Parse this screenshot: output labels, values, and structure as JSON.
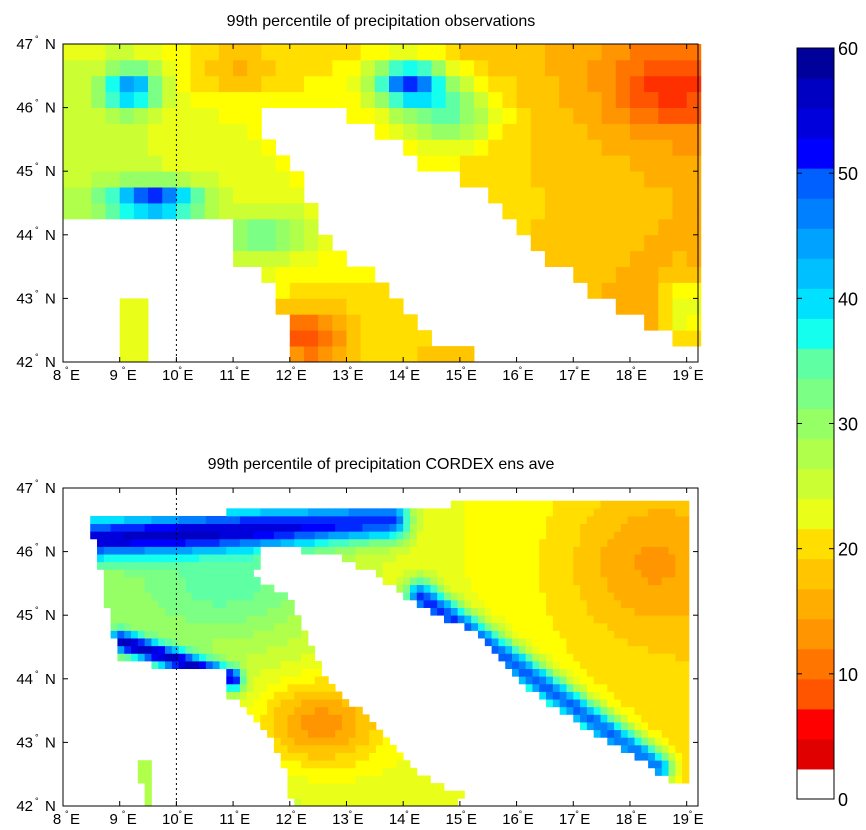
{
  "chart_data": [
    {
      "type": "heatmap",
      "title": "99th percentile of precipitation  observations",
      "xlabel": "",
      "ylabel": "",
      "x_ticks": [
        "8",
        "9",
        "10",
        "11",
        "12",
        "13",
        "14",
        "15",
        "16",
        "17",
        "18",
        "19"
      ],
      "x_tick_suffix": "E",
      "y_ticks": [
        "42",
        "43",
        "44",
        "45",
        "46",
        "47"
      ],
      "y_tick_suffix": "N",
      "xlim": [
        8,
        19.2
      ],
      "ylim": [
        42,
        47
      ],
      "reference_line_lon": 10,
      "colorbar_range": [
        0,
        60
      ],
      "field_description": "gridded observations; highest values (50-60) over the Alps near 13.5-14.5E 46-46.7N and Ligurian coast 9-10.5E 44.5N; lowest values (10-15) around 12E 42.3N and 18.5-19E 46.5N"
    },
    {
      "type": "heatmap",
      "title": "99th percentile of precipitation  CORDEX ens ave",
      "xlabel": "",
      "ylabel": "",
      "x_ticks": [
        "8",
        "9",
        "10",
        "11",
        "12",
        "13",
        "14",
        "15",
        "16",
        "17",
        "18",
        "19"
      ],
      "x_tick_suffix": "E",
      "y_ticks": [
        "42",
        "43",
        "44",
        "45",
        "46",
        "47"
      ],
      "y_tick_suffix": "N",
      "xlim": [
        8,
        19.2
      ],
      "ylim": [
        42,
        47
      ],
      "reference_line_lon": 10,
      "colorbar_range": [
        0,
        60
      ],
      "field_description": "regional model ensemble average; maxima (55-60) along the Alpine arc 8.5-14E 46-46.6N, the Ligurian coast and the eastern Adriatic coast 15-19E 43-45N"
    }
  ],
  "colorbar": {
    "min": 0,
    "max": 60,
    "levels": 25,
    "tick_values": [
      0,
      10,
      20,
      30,
      40,
      50,
      60
    ],
    "tick_labels": [
      "0",
      "10",
      "20",
      "30",
      "40",
      "50",
      "60"
    ],
    "colors": [
      "#ffffff",
      "#e00000",
      "#ff0000",
      "#ff3000",
      "#ff5500",
      "#ff7500",
      "#ff9500",
      "#ffae00",
      "#ffc600",
      "#ffde00",
      "#ffff00",
      "#e9ff1a",
      "#ccff33",
      "#b0ff4a",
      "#96ff66",
      "#7bff84",
      "#5fffa3",
      "#40ffc8",
      "#14ffee",
      "#00e1ff",
      "#00c0ff",
      "#00a2ff",
      "#0080ff",
      "#0060ff",
      "#0028ff",
      "#0000ff",
      "#0000dd",
      "#0000c3",
      "#00009b"
    ]
  }
}
